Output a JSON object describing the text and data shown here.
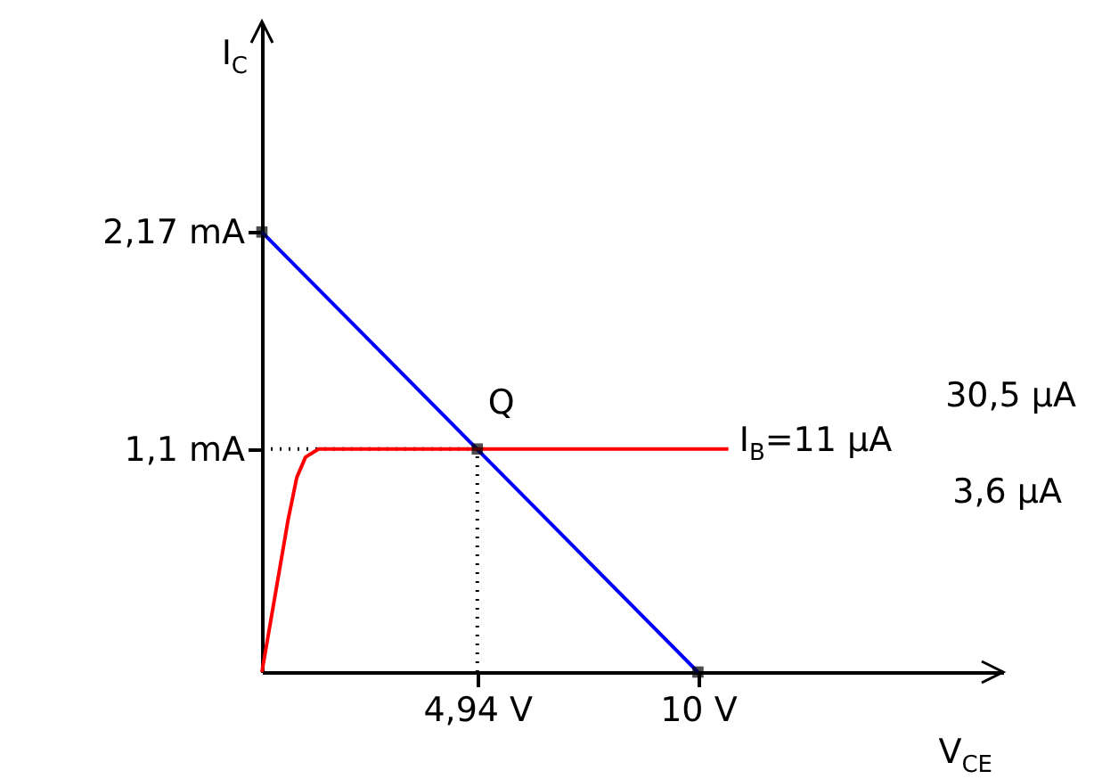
{
  "chart_data": {
    "type": "line",
    "xlabel": "V$_{CE}$",
    "ylabel": "I$_{C}$",
    "xlim": [
      0,
      17
    ],
    "ylim": [
      0,
      3.2
    ],
    "xticks": [
      {
        "value": 4.94,
        "label": "4,94 V"
      },
      {
        "value": 10,
        "label": "10 V"
      }
    ],
    "yticks": [
      {
        "value": 1.1,
        "label": "1,1 mA"
      },
      {
        "value": 2.17,
        "label": "2,17 mA"
      }
    ],
    "series": [
      {
        "color": "#0000ff",
        "x": [
          0,
          10
        ],
        "values": [
          2.17,
          0
        ],
        "marker": "none"
      },
      {
        "name": "I$_{B}$=11 µA",
        "color": "#ff0000",
        "x": [
          0,
          0.6,
          0.8,
          1.0,
          1.3,
          10.7
        ],
        "values": [
          0,
          0.75,
          0.96,
          1.06,
          1.1,
          1.1
        ],
        "marker": "none"
      },
      {
        "type": "scatter",
        "color": "#000000",
        "x": [
          0,
          4.94,
          10
        ],
        "values": [
          2.17,
          1.1,
          0
        ],
        "marker": "square"
      }
    ],
    "ref_lines": [
      {
        "axis": "x",
        "value": 4.94,
        "line_style": "dotted",
        "color": "#000000"
      },
      {
        "axis": "y",
        "value": 1.1,
        "line_style": "dotted",
        "color": "#000000"
      }
    ],
    "annotations": [
      {
        "text": "Q",
        "x": 4.94,
        "y": 1.1
      },
      "30,5 µA",
      "3,6 µA"
    ]
  }
}
